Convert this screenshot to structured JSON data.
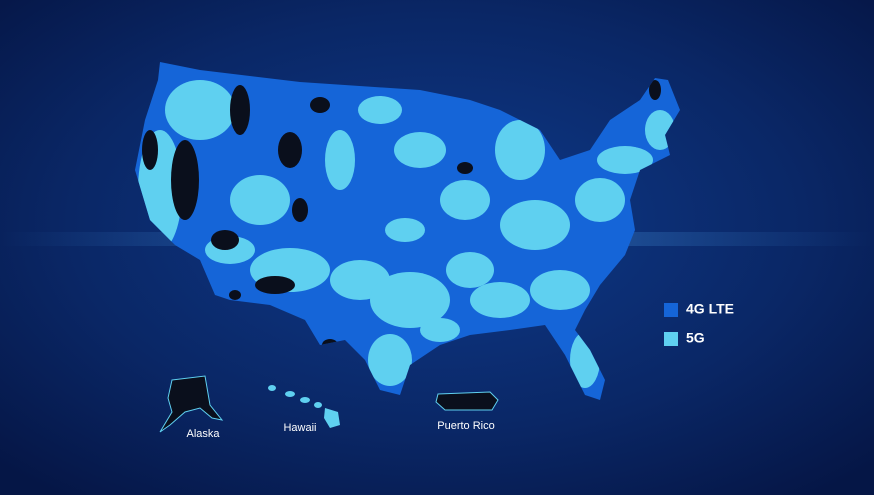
{
  "legend": {
    "items": [
      {
        "label": "4G LTE",
        "color": "#1565d8"
      },
      {
        "label": "5G",
        "color": "#5fd0f0"
      }
    ]
  },
  "insets": [
    {
      "label": "Alaska"
    },
    {
      "label": "Hawaii"
    },
    {
      "label": "Puerto Rico"
    }
  ]
}
